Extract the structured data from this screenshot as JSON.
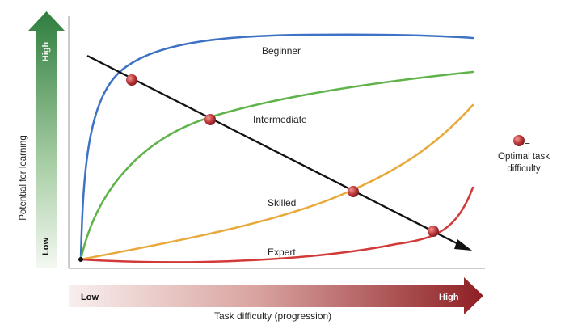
{
  "y_axis": {
    "label": "Potential for learning",
    "high": "High",
    "low": "Low"
  },
  "x_axis": {
    "label": "Task difficulty (progression)",
    "low": "Low",
    "high": "High"
  },
  "curves": {
    "beginner": {
      "label": "Beginner",
      "color": "#3d72c4"
    },
    "intermediate": {
      "label": "Intermediate",
      "color": "#5fb34a"
    },
    "skilled": {
      "label": "Skilled",
      "color": "#e7a93a"
    },
    "expert": {
      "label": "Expert",
      "color": "#d23a3a"
    }
  },
  "diagonal": {
    "color": "#111111"
  },
  "marker": {
    "color": "#c0383c"
  },
  "legend": {
    "eq": "=",
    "text": "Optimal task difficulty"
  },
  "arrows": {
    "y_top_color": "#2f7d3e",
    "x_right_color": "#8e1f24"
  }
}
